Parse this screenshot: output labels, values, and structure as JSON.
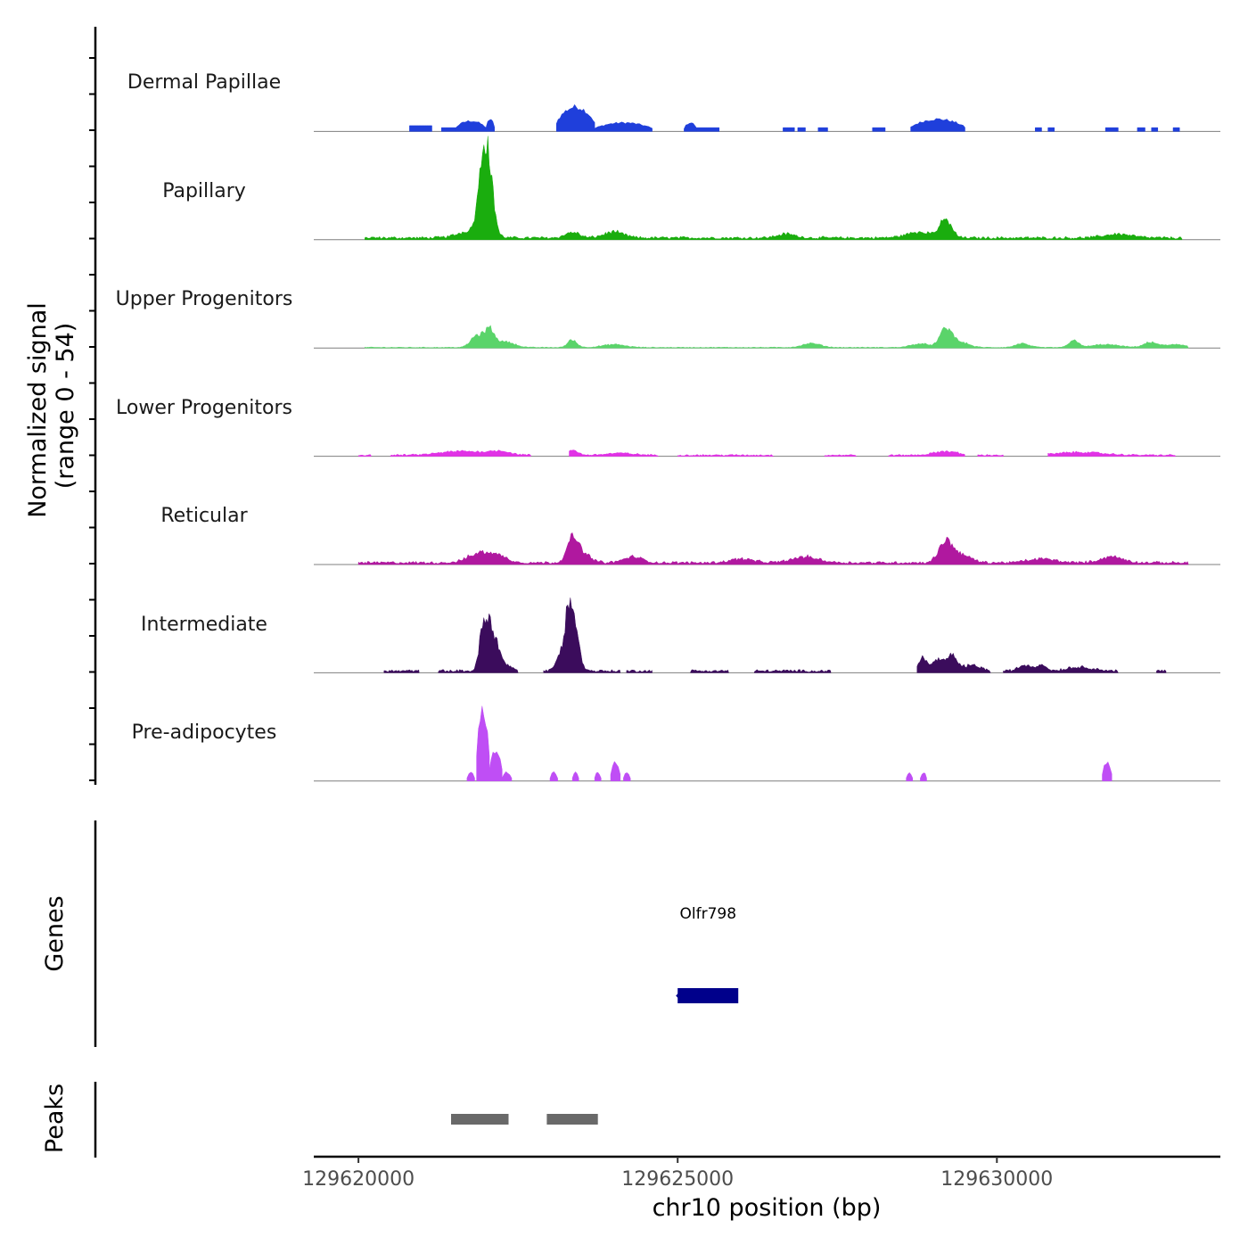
{
  "chart_data": {
    "type": "area",
    "chromosome": "chr10",
    "xlabel": "chr10 position (bp)",
    "ylabel_line1": "Normalized signal",
    "ylabel_line2": "(range 0 - 54)",
    "ylim": [
      0,
      54
    ],
    "xlim": [
      129619300,
      129633500
    ],
    "x_ticks": [
      129620000,
      129625000,
      129630000
    ],
    "x_tick_labels": [
      "129620000",
      "129625000",
      "129630000"
    ],
    "tracks": [
      {
        "name": "Dermal Papillae",
        "color": "#1f3fdb",
        "shape": "blocky",
        "peaks": [
          {
            "start": 129620800,
            "end": 129621150,
            "max": 3
          },
          {
            "start": 129621300,
            "end": 129621520,
            "max": 2
          },
          {
            "start": 129621520,
            "end": 129622000,
            "max": 6
          },
          {
            "start": 129622000,
            "end": 129622130,
            "max": 7
          },
          {
            "start": 129623100,
            "end": 129623700,
            "max": 14
          },
          {
            "start": 129623700,
            "end": 129624600,
            "max": 5
          },
          {
            "start": 129625100,
            "end": 129625300,
            "max": 5
          },
          {
            "start": 129625300,
            "end": 129625650,
            "max": 2
          },
          {
            "start": 129626650,
            "end": 129626830,
            "max": 2
          },
          {
            "start": 129626880,
            "end": 129627000,
            "max": 2
          },
          {
            "start": 129627200,
            "end": 129627350,
            "max": 2
          },
          {
            "start": 129628050,
            "end": 129628250,
            "max": 2
          },
          {
            "start": 129628650,
            "end": 129629500,
            "max": 7
          },
          {
            "start": 129630600,
            "end": 129630700,
            "max": 2
          },
          {
            "start": 129630800,
            "end": 129630900,
            "max": 2
          },
          {
            "start": 129631700,
            "end": 129631900,
            "max": 2
          },
          {
            "start": 129632200,
            "end": 129632320,
            "max": 2
          },
          {
            "start": 129632420,
            "end": 129632520,
            "max": 2
          },
          {
            "start": 129632760,
            "end": 129632860,
            "max": 2
          }
        ]
      },
      {
        "name": "Papillary",
        "color": "#1aad0e",
        "shape": "continuous",
        "segments": [
          [
            129620100,
            129632900
          ]
        ],
        "baseline": 1,
        "peaks": [
          {
            "center": 129621800,
            "width": 300,
            "height": 4
          },
          {
            "center": 129621900,
            "width": 90,
            "height": 10
          },
          {
            "center": 129621950,
            "width": 90,
            "height": 16
          },
          {
            "center": 129622000,
            "width": 90,
            "height": 25
          },
          {
            "center": 129622080,
            "width": 90,
            "height": 17
          },
          {
            "center": 129623350,
            "width": 150,
            "height": 3
          },
          {
            "center": 129624000,
            "width": 220,
            "height": 3
          },
          {
            "center": 129626700,
            "width": 200,
            "height": 2
          },
          {
            "center": 129628800,
            "width": 300,
            "height": 3
          },
          {
            "center": 129629200,
            "width": 130,
            "height": 9
          },
          {
            "center": 129631900,
            "width": 300,
            "height": 2
          }
        ]
      },
      {
        "name": "Upper Progenitors",
        "color": "#5ad46a",
        "shape": "continuous",
        "segments": [
          [
            129620100,
            129633000
          ]
        ],
        "baseline": 0.3,
        "peaks": [
          {
            "center": 129621850,
            "width": 130,
            "height": 6
          },
          {
            "center": 129622050,
            "width": 110,
            "height": 9
          },
          {
            "center": 129622300,
            "width": 200,
            "height": 3
          },
          {
            "center": 129623350,
            "width": 100,
            "height": 4
          },
          {
            "center": 129624000,
            "width": 250,
            "height": 1.5
          },
          {
            "center": 129627100,
            "width": 200,
            "height": 2
          },
          {
            "center": 129628800,
            "width": 200,
            "height": 2
          },
          {
            "center": 129629200,
            "width": 130,
            "height": 9
          },
          {
            "center": 129629400,
            "width": 200,
            "height": 3
          },
          {
            "center": 129630400,
            "width": 150,
            "height": 2
          },
          {
            "center": 129631200,
            "width": 100,
            "height": 4
          },
          {
            "center": 129631700,
            "width": 300,
            "height": 1.5
          },
          {
            "center": 129632400,
            "width": 150,
            "height": 2.5
          },
          {
            "center": 129632800,
            "width": 250,
            "height": 1.5
          }
        ]
      },
      {
        "name": "Lower Progenitors",
        "color": "#e132e6",
        "shape": "continuous",
        "segments": [
          [
            129620000,
            129620200
          ],
          [
            129620500,
            129622700
          ],
          [
            129623300,
            129624700
          ],
          [
            129625000,
            129626500
          ],
          [
            129627300,
            129627800
          ],
          [
            129628300,
            129629500
          ],
          [
            129629700,
            129630100
          ],
          [
            129630800,
            129632800
          ]
        ],
        "baseline": 0.6,
        "peaks": [
          {
            "center": 129621600,
            "width": 450,
            "height": 2
          },
          {
            "center": 129622200,
            "width": 250,
            "height": 2
          },
          {
            "center": 129623350,
            "width": 120,
            "height": 2.5
          },
          {
            "center": 129624100,
            "width": 300,
            "height": 1
          },
          {
            "center": 129629200,
            "width": 250,
            "height": 2
          },
          {
            "center": 129631300,
            "width": 500,
            "height": 1.5
          }
        ]
      },
      {
        "name": "Reticular",
        "color": "#b0189f",
        "shape": "continuous",
        "segments": [
          [
            129620000,
            129633000
          ]
        ],
        "baseline": 1,
        "peaks": [
          {
            "center": 129621900,
            "width": 250,
            "height": 5
          },
          {
            "center": 129622200,
            "width": 200,
            "height": 3
          },
          {
            "center": 129623350,
            "width": 120,
            "height": 11
          },
          {
            "center": 129623500,
            "width": 180,
            "height": 5
          },
          {
            "center": 129624300,
            "width": 200,
            "height": 3
          },
          {
            "center": 129626000,
            "width": 250,
            "height": 2
          },
          {
            "center": 129627000,
            "width": 300,
            "height": 3
          },
          {
            "center": 129629200,
            "width": 150,
            "height": 11
          },
          {
            "center": 129629450,
            "width": 200,
            "height": 4
          },
          {
            "center": 129630700,
            "width": 300,
            "height": 2
          },
          {
            "center": 129631800,
            "width": 250,
            "height": 3
          }
        ]
      },
      {
        "name": "Intermediate",
        "color": "#3b0c5c",
        "shape": "continuous",
        "segments": [
          [
            129620400,
            129620950
          ],
          [
            129621250,
            129622500
          ],
          [
            129622900,
            129624100
          ],
          [
            129624200,
            129624600
          ],
          [
            129625200,
            129625800
          ],
          [
            129626200,
            129627400
          ],
          [
            129628750,
            129629900
          ],
          [
            129630100,
            129631900
          ],
          [
            129632500,
            129632650
          ]
        ],
        "baseline": 1,
        "peaks": [
          {
            "center": 129621950,
            "width": 80,
            "height": 22
          },
          {
            "center": 129622050,
            "width": 80,
            "height": 18
          },
          {
            "center": 129622150,
            "width": 100,
            "height": 12
          },
          {
            "center": 129622300,
            "width": 150,
            "height": 3
          },
          {
            "center": 129623300,
            "width": 80,
            "height": 25
          },
          {
            "center": 129623400,
            "width": 100,
            "height": 17
          },
          {
            "center": 129623200,
            "width": 120,
            "height": 10
          },
          {
            "center": 129628850,
            "width": 100,
            "height": 7
          },
          {
            "center": 129629100,
            "width": 120,
            "height": 6
          },
          {
            "center": 129629300,
            "width": 100,
            "height": 8
          },
          {
            "center": 129629600,
            "width": 200,
            "height": 3
          },
          {
            "center": 129630450,
            "width": 150,
            "height": 3
          },
          {
            "center": 129630700,
            "width": 100,
            "height": 3
          },
          {
            "center": 129631300,
            "width": 300,
            "height": 2
          }
        ]
      },
      {
        "name": "Pre-adipocytes",
        "color": "#bf4ef5",
        "shape": "blocky",
        "peaks": [
          {
            "start": 129621700,
            "end": 129621820,
            "max": 5
          },
          {
            "start": 129621850,
            "end": 129622050,
            "max": 40
          },
          {
            "start": 129622050,
            "end": 129622250,
            "max": 18
          },
          {
            "start": 129622250,
            "end": 129622400,
            "max": 5
          },
          {
            "start": 129623000,
            "end": 129623120,
            "max": 5
          },
          {
            "start": 129623350,
            "end": 129623450,
            "max": 5
          },
          {
            "start": 129623700,
            "end": 129623800,
            "max": 5
          },
          {
            "start": 129623950,
            "end": 129624100,
            "max": 11
          },
          {
            "start": 129624150,
            "end": 129624260,
            "max": 5
          },
          {
            "start": 129628580,
            "end": 129628680,
            "max": 5
          },
          {
            "start": 129628800,
            "end": 129628900,
            "max": 5
          },
          {
            "start": 129631650,
            "end": 129631800,
            "max": 11
          }
        ]
      }
    ],
    "genes": {
      "title": "Genes",
      "items": [
        {
          "name": "Olfr798",
          "start": 129625000,
          "end": 129625950,
          "color": "#00008b"
        }
      ]
    },
    "peaks_track": {
      "title": "Peaks",
      "color": "#696969",
      "items": [
        {
          "start": 129621450,
          "end": 129622350
        },
        {
          "start": 129622950,
          "end": 129623750
        }
      ]
    }
  }
}
